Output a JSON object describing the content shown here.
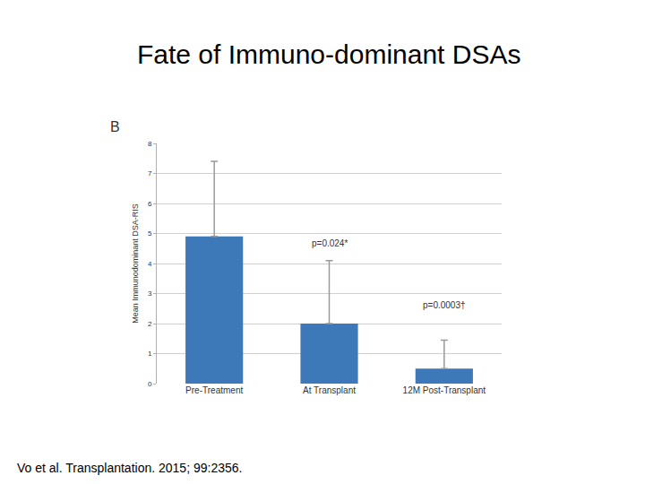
{
  "chart_data": {
    "type": "bar",
    "title": "Fate of Immuno-dominant DSAs",
    "panel_label": "B",
    "y_label": "Mean Immunodominant DSA-RIS",
    "categories": [
      "Pre-Treatment",
      "At Transplant",
      "12M Post-Transplant"
    ],
    "values": [
      4.9,
      2.0,
      0.5
    ],
    "errors": [
      2.5,
      2.1,
      0.95
    ],
    "color": "#3d78b8",
    "ylim": [
      0,
      8
    ],
    "yticks": [
      0,
      1,
      2,
      3,
      4,
      5,
      6,
      7,
      8
    ],
    "grid": true,
    "annotations": [
      {
        "text": "p=0.024*",
        "category": "At Transplant",
        "y": 4.45
      },
      {
        "text": "p=0.0003†",
        "category": "12M Post-Transplant",
        "y": 2.4
      }
    ],
    "caption": "Vo et al. Transplantation. 2015; 99:2356."
  }
}
